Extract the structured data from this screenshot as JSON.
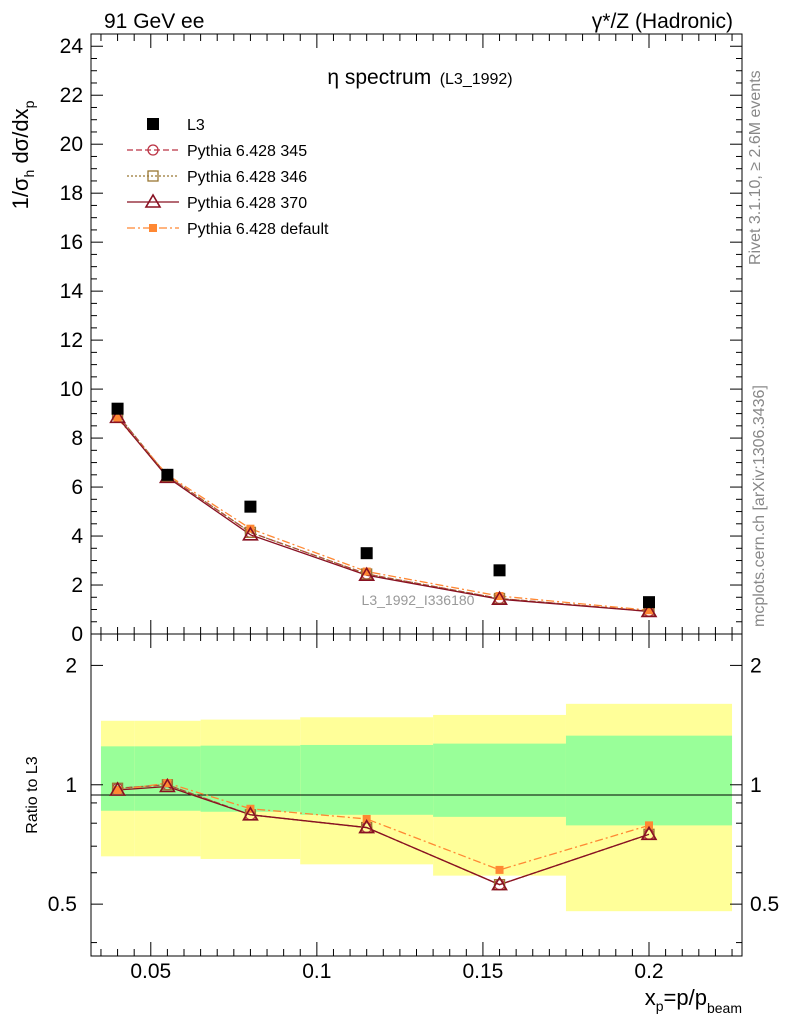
{
  "header": {
    "left": "91 GeV ee",
    "right": "γ*/Z (Hadronic)"
  },
  "side_texts": {
    "rivet": "Rivet 3.1.10, ≥ 2.6M events",
    "mcplots": "mcplots.cern.ch [arXiv:1306.3436]"
  },
  "colors": {
    "l3": "#000000",
    "p345": "#bb3344",
    "p346": "#997733",
    "p370": "#881122",
    "pdefault": "#ff8833",
    "band_inner": "#99ff99",
    "band_outer": "#ffff99"
  },
  "chart_data": [
    {
      "type": "line",
      "title": "η spectrum",
      "title_tag": "(L3_1992)",
      "ylabel": "1/σ_h dσ/dx_p",
      "watermark": "L3_1992_I336180",
      "ylim": [
        0,
        24.5
      ],
      "yticks": [
        0,
        2,
        4,
        6,
        8,
        10,
        12,
        14,
        16,
        18,
        20,
        22,
        24
      ],
      "xlim": [
        0.032,
        0.228
      ],
      "x": [
        0.04,
        0.055,
        0.08,
        0.115,
        0.155,
        0.2
      ],
      "series": [
        {
          "name": "L3",
          "key": "l3",
          "values": [
            9.2,
            6.5,
            5.2,
            3.3,
            2.6,
            1.3
          ]
        },
        {
          "name": "Pythia 6.428 345",
          "key": "p345",
          "values": [
            8.95,
            6.45,
            4.15,
            2.45,
            1.45,
            0.93
          ]
        },
        {
          "name": "Pythia 6.428 346",
          "key": "p346",
          "values": [
            8.95,
            6.45,
            4.15,
            2.45,
            1.45,
            0.93
          ]
        },
        {
          "name": "Pythia 6.428 370",
          "key": "p370",
          "values": [
            8.85,
            6.4,
            4.05,
            2.4,
            1.42,
            0.92
          ]
        },
        {
          "name": "Pythia 6.428 default",
          "key": "pdefault",
          "values": [
            8.8,
            6.5,
            4.3,
            2.55,
            1.55,
            0.97
          ]
        }
      ]
    },
    {
      "type": "line",
      "ylabel": "Ratio to L3",
      "xlabel": "x_p=p/p_beam",
      "xticks": [
        0.05,
        0.1,
        0.15,
        0.2
      ],
      "xtick_labels": [
        "0.05",
        "0.1",
        "0.15",
        "0.2"
      ],
      "yticks": [
        0.5,
        1,
        2
      ],
      "ytick_labels": [
        "0.5",
        "1",
        "2"
      ],
      "ylim": [
        0.37,
        2.4
      ],
      "yscale": "log",
      "x": [
        0.04,
        0.055,
        0.08,
        0.115,
        0.155,
        0.2
      ],
      "bands": [
        {
          "x_range": [
            0.035,
            0.045
          ],
          "inner": [
            0.86,
            1.25
          ],
          "outer": [
            0.66,
            1.45
          ]
        },
        {
          "x_range": [
            0.045,
            0.065
          ],
          "inner": [
            0.86,
            1.25
          ],
          "outer": [
            0.66,
            1.45
          ]
        },
        {
          "x_range": [
            0.065,
            0.095
          ],
          "inner": [
            0.855,
            1.255
          ],
          "outer": [
            0.65,
            1.46
          ]
        },
        {
          "x_range": [
            0.095,
            0.135
          ],
          "inner": [
            0.84,
            1.26
          ],
          "outer": [
            0.63,
            1.48
          ]
        },
        {
          "x_range": [
            0.135,
            0.175
          ],
          "inner": [
            0.83,
            1.27
          ],
          "outer": [
            0.59,
            1.5
          ]
        },
        {
          "x_range": [
            0.175,
            0.225
          ],
          "inner": [
            0.79,
            1.33
          ],
          "outer": [
            0.48,
            1.6
          ]
        }
      ],
      "series": [
        {
          "name": "Pythia 6.428 345",
          "key": "p345",
          "values": [
            0.98,
            1.0,
            0.84,
            0.78,
            0.56,
            0.75
          ]
        },
        {
          "name": "Pythia 6.428 346",
          "key": "p346",
          "values": [
            0.98,
            1.0,
            0.84,
            0.78,
            0.56,
            0.75
          ]
        },
        {
          "name": "Pythia 6.428 370",
          "key": "p370",
          "values": [
            0.97,
            0.99,
            0.84,
            0.78,
            0.56,
            0.75
          ]
        },
        {
          "name": "Pythia 6.428 default",
          "key": "pdefault",
          "values": [
            0.97,
            1.01,
            0.87,
            0.82,
            0.61,
            0.79
          ]
        }
      ]
    }
  ]
}
